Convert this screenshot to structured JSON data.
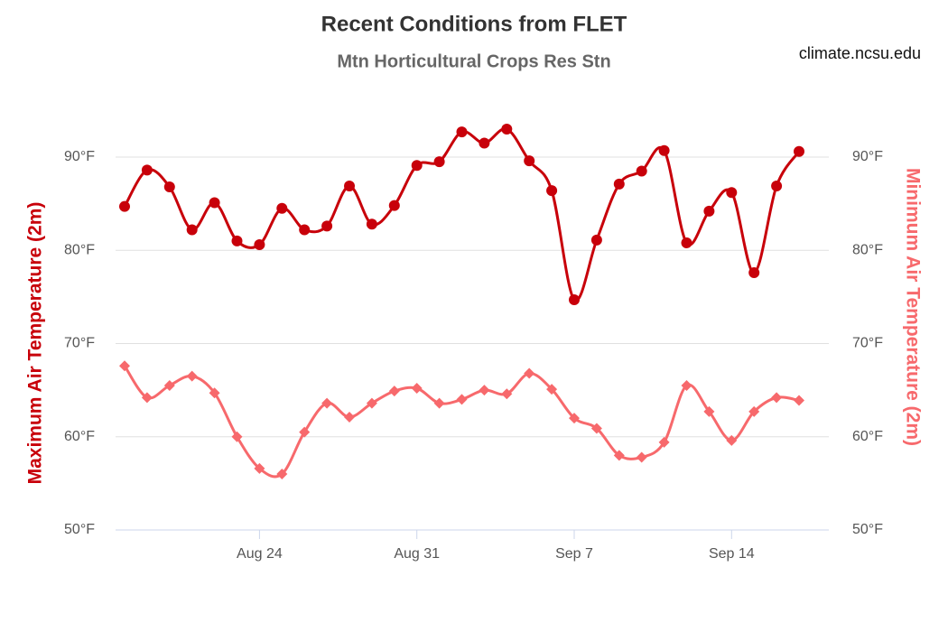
{
  "chart_data": {
    "type": "line",
    "title": "Recent Conditions from FLET",
    "subtitle": "Mtn Horticultural Crops Res Stn",
    "credit": "climate.ncsu.edu",
    "ylabel": "Maximum Air Temperature (2m)",
    "y2label": "Minimum Air Temperature (2m)",
    "x": [
      "Aug 18",
      "Aug 19",
      "Aug 20",
      "Aug 21",
      "Aug 22",
      "Aug 23",
      "Aug 24",
      "Aug 25",
      "Aug 26",
      "Aug 27",
      "Aug 28",
      "Aug 29",
      "Aug 30",
      "Aug 31",
      "Sep 1",
      "Sep 2",
      "Sep 3",
      "Sep 4",
      "Sep 5",
      "Sep 6",
      "Sep 7",
      "Sep 8",
      "Sep 9",
      "Sep 10",
      "Sep 11",
      "Sep 12",
      "Sep 13",
      "Sep 14",
      "Sep 15",
      "Sep 16",
      "Sep 17"
    ],
    "xticks": [
      "Aug 24",
      "Aug 31",
      "Sep 7",
      "Sep 14"
    ],
    "ylim": [
      50,
      96
    ],
    "yticks": [
      {
        "value": 50,
        "label": "50°F"
      },
      {
        "value": 60,
        "label": "60°F"
      },
      {
        "value": 70,
        "label": "70°F"
      },
      {
        "value": 80,
        "label": "80°F"
      },
      {
        "value": 90,
        "label": "90°F"
      }
    ],
    "y2lim": [
      50,
      96
    ],
    "y2ticks": [
      {
        "value": 50,
        "label": "50°F"
      },
      {
        "value": 60,
        "label": "60°F"
      },
      {
        "value": 70,
        "label": "70°F"
      },
      {
        "value": 80,
        "label": "80°F"
      },
      {
        "value": 90,
        "label": "90°F"
      }
    ],
    "grid": true,
    "series": [
      {
        "name": "Maximum Air Temperature (2m)",
        "color": "#c8000a",
        "marker": "circle",
        "values": [
          84.7,
          88.6,
          86.8,
          82.2,
          85.1,
          81.0,
          80.6,
          84.5,
          82.2,
          82.6,
          86.9,
          82.8,
          84.8,
          89.1,
          89.5,
          92.7,
          91.5,
          93.0,
          89.6,
          86.4,
          74.7,
          81.1,
          87.1,
          88.5,
          90.7,
          80.8,
          84.2,
          86.2,
          77.6,
          86.9,
          90.6
        ]
      },
      {
        "name": "Minimum Air Temperature (2m)",
        "color": "#f7696c",
        "marker": "diamond",
        "axis": "y2",
        "values": [
          67.6,
          64.2,
          65.5,
          66.5,
          64.7,
          60.0,
          56.6,
          56.0,
          60.5,
          63.6,
          62.1,
          63.6,
          64.9,
          65.2,
          63.6,
          64.0,
          65.0,
          64.6,
          66.8,
          65.1,
          62.0,
          60.9,
          58.0,
          57.8,
          59.4,
          65.5,
          62.7,
          59.6,
          62.7,
          64.2,
          63.9
        ]
      }
    ]
  }
}
